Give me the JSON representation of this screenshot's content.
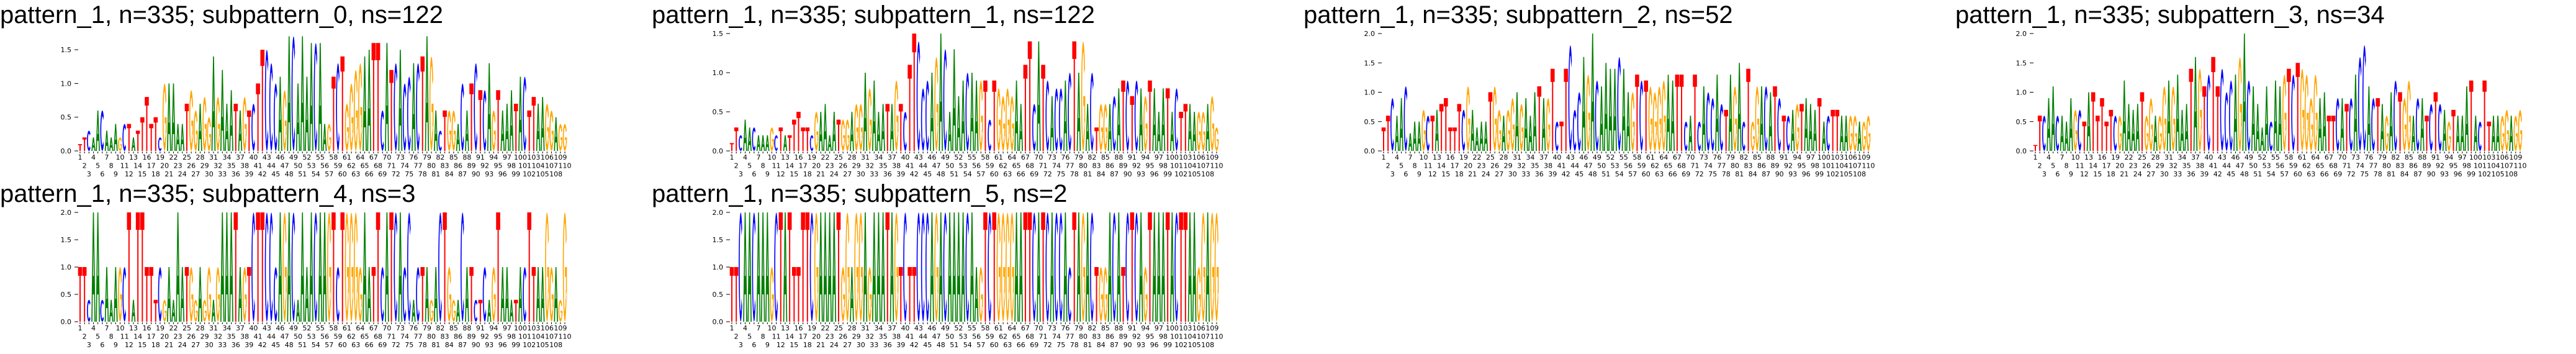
{
  "colors": {
    "A": "#008000",
    "C": "#0000ff",
    "G": "#ffa500",
    "T": "#ff0000"
  },
  "chart_data": [
    {
      "type": "sequence-logo",
      "title": "pattern_1, n=335; subpattern_0, ns=122",
      "ylim": [
        0,
        1.74
      ],
      "y_ticks": [
        "0.0",
        "0.5",
        "1.0",
        "1.5"
      ],
      "heights": [
        0.1,
        0.2,
        0.3,
        0.2,
        0.6,
        0.6,
        0.3,
        0.2,
        0.4,
        0.2,
        0.4,
        0.4,
        0.2,
        0.3,
        0.5,
        0.8,
        0.4,
        0.5,
        0.2,
        1.0,
        1.0,
        1.0,
        0.4,
        0.4,
        0.7,
        0.9,
        0.6,
        0.7,
        0.8,
        0.5,
        1.4,
        0.8,
        1.2,
        0.7,
        0.9,
        0.7,
        0.6,
        0.8,
        0.6,
        0.7,
        1.0,
        1.5,
        1.5,
        1.3,
        1.0,
        1.1,
        0.9,
        1.7,
        1.7,
        1.0,
        1.7,
        1.1,
        1.6,
        1.6,
        1.6,
        0.4,
        0.4,
        1.1,
        1.3,
        1.4,
        0.7,
        1.0,
        1.2,
        1.3,
        1.4,
        1.5,
        1.6,
        1.6,
        0.6,
        1.6,
        1.2,
        1.3,
        1.5,
        1.0,
        1.1,
        1.3,
        1.3,
        1.4,
        1.7,
        1.4,
        0.6,
        0.3,
        0.6,
        0.6,
        0.6,
        0.4,
        1.0,
        0.6,
        1.0,
        1.3,
        0.9,
        0.9,
        1.3,
        0.6,
        0.9,
        0.6,
        0.7,
        0.9,
        0.7,
        1.1,
        1.1,
        0.6,
        0.8,
        0.7,
        0.8,
        0.7,
        0.6,
        0.5,
        0.4,
        0.4
      ]
    },
    {
      "type": "sequence-logo",
      "title": "pattern_1, n=335; subpattern_1, ns=122",
      "ylim": [
        0,
        1.5
      ],
      "y_ticks": [
        "0.0",
        "0.5",
        "1.0",
        "1.5"
      ],
      "heights": [
        0.1,
        0.3,
        0.2,
        0.4,
        0.3,
        0.3,
        0.2,
        0.2,
        0.2,
        0.3,
        0.2,
        0.3,
        0.2,
        0.2,
        0.4,
        0.5,
        0.3,
        0.3,
        0.2,
        0.5,
        0.5,
        0.6,
        0.2,
        0.5,
        0.4,
        0.4,
        0.4,
        0.5,
        0.6,
        0.6,
        1.0,
        0.8,
        0.9,
        0.5,
        0.6,
        0.6,
        0.6,
        0.9,
        0.6,
        0.5,
        1.1,
        1.5,
        1.4,
        0.8,
        0.9,
        1.0,
        1.2,
        1.5,
        1.3,
        0.5,
        1.3,
        0.7,
        0.9,
        1.0,
        1.0,
        0.9,
        0.9,
        0.9,
        0.4,
        0.9,
        0.8,
        0.7,
        0.8,
        0.7,
        0.9,
        0.6,
        1.1,
        1.4,
        0.6,
        1.4,
        1.1,
        0.9,
        0.7,
        0.8,
        0.8,
        0.9,
        1.0,
        1.4,
        1.0,
        1.4,
        0.6,
        1.0,
        0.3,
        0.6,
        0.6,
        0.6,
        0.7,
        0.8,
        0.9,
        0.9,
        0.7,
        0.9,
        0.8,
        0.7,
        0.9,
        0.8,
        0.5,
        0.8,
        0.8,
        0.5,
        0.8,
        0.5,
        0.6,
        0.6,
        0.5,
        0.5,
        0.5,
        0.6,
        0.7,
        0.3
      ]
    },
    {
      "type": "sequence-logo",
      "title": "pattern_1, n=335; subpattern_2, ns=52",
      "ylim": [
        0,
        2.0
      ],
      "y_ticks": [
        "0.0",
        "0.5",
        "1.0",
        "1.5",
        "2.0"
      ],
      "heights": [
        0.4,
        0.6,
        0.9,
        0.6,
        0.9,
        1.1,
        0.3,
        0.5,
        0.5,
        0.7,
        0.6,
        0.6,
        0.7,
        0.8,
        0.9,
        0.4,
        0.4,
        0.8,
        0.7,
        1.1,
        0.7,
        0.4,
        0.5,
        0.5,
        1.0,
        1.1,
        0.7,
        0.6,
        0.7,
        0.9,
        1.0,
        0.8,
        0.9,
        0.6,
        1.0,
        1.1,
        0.9,
        0.9,
        1.4,
        0.5,
        0.5,
        1.4,
        1.8,
        0.7,
        1.0,
        1.6,
        1.3,
        2.0,
        1.2,
        1.1,
        1.5,
        1.4,
        1.4,
        1.6,
        1.4,
        1.0,
        1.0,
        1.3,
        1.2,
        1.2,
        1.1,
        1.0,
        1.1,
        1.2,
        1.3,
        1.2,
        1.3,
        1.3,
        0.5,
        0.6,
        1.3,
        0.5,
        1.1,
        1.0,
        0.9,
        1.3,
        0.8,
        0.7,
        1.3,
        1.1,
        1.5,
        0.5,
        1.4,
        0.5,
        1.1,
        1.1,
        1.1,
        1.0,
        1.1,
        0.9,
        0.6,
        0.6,
        0.7,
        0.8,
        0.8,
        0.9,
        0.8,
        0.7,
        0.9,
        0.5,
        0.6,
        0.7,
        0.7,
        0.6,
        0.6,
        0.6,
        0.6,
        0.5,
        0.5,
        0.6
      ]
    },
    {
      "type": "sequence-logo",
      "title": "pattern_1, n=335; subpattern_3, ns=34",
      "ylim": [
        0,
        2.0
      ],
      "y_ticks": [
        "0.0",
        "0.5",
        "1.0",
        "1.5",
        "2.0"
      ],
      "heights": [
        0.1,
        0.6,
        0.6,
        0.9,
        1.1,
        0.6,
        0.6,
        0.5,
        0.9,
        0.7,
        0.7,
        0.5,
        1.0,
        1.0,
        0.6,
        0.9,
        0.5,
        0.7,
        0.6,
        0.6,
        1.2,
        0.8,
        0.7,
        0.8,
        1.0,
        0.6,
        0.9,
        0.6,
        0.6,
        1.1,
        1.2,
        1.1,
        1.3,
        0.7,
        0.8,
        1.4,
        1.6,
        1.4,
        1.1,
        1.3,
        1.6,
        1.1,
        1.4,
        1.0,
        1.2,
        1.3,
        1.6,
        2.0,
        1.2,
        1.1,
        0.8,
        0.4,
        1.1,
        0.5,
        1.2,
        1.1,
        1.3,
        1.4,
        1.3,
        1.5,
        1.4,
        1.3,
        0.9,
        1.3,
        0.9,
        1.0,
        0.6,
        0.6,
        0.9,
        0.9,
        0.8,
        0.9,
        1.3,
        1.6,
        1.8,
        1.1,
        0.9,
        0.9,
        0.8,
        0.6,
        1.0,
        1.2,
        1.0,
        0.9,
        1.2,
        0.6,
        0.9,
        0.9,
        0.6,
        0.8,
        1.0,
        0.8,
        0.7,
        0.5,
        0.7,
        0.6,
        0.6,
        1.1,
        1.2,
        0.6,
        0.5,
        1.2,
        0.5,
        0.6,
        0.6,
        0.6,
        0.7,
        0.6,
        0.6,
        0.7
      ]
    },
    {
      "type": "sequence-logo",
      "title": "pattern_1, n=335; subpattern_4, ns=3",
      "ylim": [
        0,
        2.0
      ],
      "y_ticks": [
        "0.0",
        "0.5",
        "1.0",
        "1.5",
        "2.0"
      ],
      "heights": [
        1.0,
        1.0,
        0.4,
        2.0,
        2.0,
        0.4,
        1.0,
        0.4,
        1.0,
        1.0,
        1.0,
        2.0,
        0.4,
        2.0,
        2.0,
        1.0,
        1.0,
        0.4,
        1.0,
        0.4,
        1.0,
        0.4,
        2.0,
        1.0,
        1.0,
        1.0,
        0.4,
        1.0,
        0.4,
        1.0,
        0.4,
        1.0,
        2.0,
        2.0,
        2.0,
        2.0,
        1.0,
        1.0,
        1.0,
        2.0,
        2.0,
        2.0,
        2.0,
        2.0,
        1.0,
        2.0,
        2.0,
        2.0,
        2.0,
        0.4,
        2.0,
        1.0,
        2.0,
        2.0,
        2.0,
        2.0,
        2.0,
        2.0,
        1.0,
        2.0,
        2.0,
        2.0,
        2.0,
        1.0,
        2.0,
        1.0,
        1.0,
        2.0,
        1.0,
        2.0,
        2.0,
        2.0,
        2.0,
        1.0,
        2.0,
        0.4,
        1.0,
        1.0,
        1.0,
        0.4,
        1.0,
        2.0,
        2.0,
        1.0,
        0.4,
        0.4,
        2.0,
        1.0,
        1.0,
        0.4,
        0.4,
        1.0,
        0.4,
        1.0,
        2.0,
        1.0,
        1.0,
        0.4,
        0.4,
        1.0,
        1.0,
        2.0,
        1.0,
        1.0,
        1.0,
        2.0,
        1.0,
        1.0,
        0.4,
        2.0
      ]
    },
    {
      "type": "sequence-logo",
      "title": "pattern_1, n=335; subpattern_5, ns=2",
      "ylim": [
        0,
        2.0
      ],
      "y_ticks": [
        "0.0",
        "0.5",
        "1.0",
        "1.5",
        "2.0"
      ],
      "heights": [
        1,
        1,
        2,
        2,
        2,
        2,
        2,
        2,
        2,
        1,
        2,
        2,
        2,
        2,
        1,
        1,
        2,
        2,
        2,
        2,
        2,
        2,
        2,
        2,
        2,
        1,
        2,
        1,
        2,
        2,
        2,
        1,
        2,
        2,
        2,
        2,
        2,
        2,
        1,
        2,
        1,
        1,
        2,
        2,
        2,
        2,
        2,
        2,
        2,
        2,
        2,
        2,
        2,
        2,
        2,
        1,
        1,
        2,
        2,
        2,
        2,
        2,
        2,
        2,
        2,
        2,
        2,
        2,
        2,
        2,
        2,
        2,
        2,
        2,
        2,
        2,
        1,
        2,
        2,
        2,
        2,
        2,
        1,
        1,
        1,
        2,
        2,
        2,
        1,
        2,
        2,
        2,
        2,
        1,
        2,
        2,
        2,
        2,
        2,
        2,
        2,
        2,
        2,
        2,
        2,
        1,
        2,
        2,
        2,
        2
      ]
    }
  ],
  "consensus": "TTCAACAAAGCTATTTTTCGAAAATGGAGGAGAAATAGTCTTCCCAGACAAAACAAGTCTGGGGAATTCATCACCACTAGACTGGACATCTCAGTAAATACTTAAGGAGG",
  "x_tick_labels": [
    1,
    2,
    3,
    4,
    5,
    6,
    7,
    8,
    9,
    10,
    11,
    12,
    13,
    14,
    15,
    16,
    17,
    18,
    19,
    20,
    21,
    22,
    23,
    24,
    25,
    26,
    27,
    28,
    29,
    30,
    31,
    32,
    33,
    34,
    35,
    36,
    37,
    38,
    39,
    40,
    41,
    42,
    43,
    44,
    45,
    46,
    47,
    48,
    49,
    50,
    51,
    52,
    53,
    54,
    55,
    56,
    57,
    58,
    59,
    60,
    61,
    62,
    63,
    64,
    65,
    66,
    67,
    68,
    69,
    70,
    71,
    72,
    73,
    74,
    75,
    76,
    77,
    78,
    79,
    80,
    81,
    82,
    83,
    84,
    85,
    86,
    87,
    88,
    89,
    90,
    91,
    92,
    93,
    94,
    95,
    96,
    97,
    98,
    99,
    100,
    101,
    102,
    103,
    104,
    105,
    106,
    107,
    108,
    109,
    110
  ]
}
